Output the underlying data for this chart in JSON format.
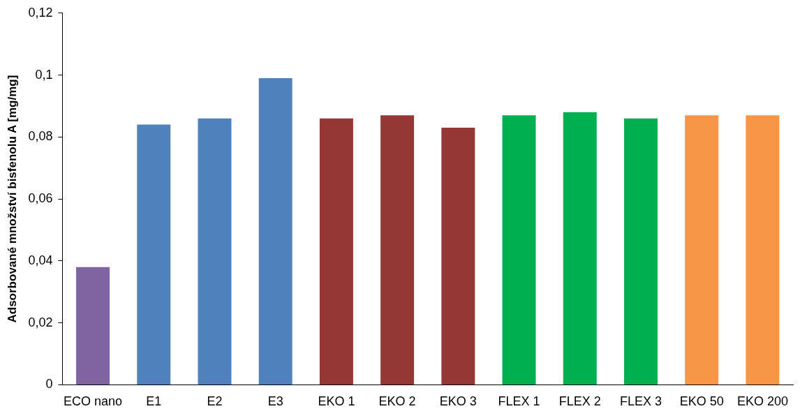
{
  "chart_data": {
    "type": "bar",
    "ylabel": "Adsorbované množství bisfenolu A [mg/mg]",
    "categories": [
      "ECO nano",
      "E1",
      "E2",
      "E3",
      "EKO 1",
      "EKO 2",
      "EKO 3",
      "FLEX 1",
      "FLEX 2",
      "FLEX 3",
      "EKO 50",
      "EKO 200"
    ],
    "values": [
      0.038,
      0.084,
      0.086,
      0.099,
      0.086,
      0.087,
      0.083,
      0.087,
      0.088,
      0.086,
      0.087,
      0.087
    ],
    "colors": [
      "#8064a2",
      "#4f81bd",
      "#4f81bd",
      "#4f81bd",
      "#953735",
      "#953735",
      "#953735",
      "#00b050",
      "#00b050",
      "#00b050",
      "#f79646",
      "#f79646"
    ],
    "ylim": [
      0,
      0.12
    ],
    "yticks": [
      {
        "value": 0,
        "label": "0"
      },
      {
        "value": 0.02,
        "label": "0,02"
      },
      {
        "value": 0.04,
        "label": "0,04"
      },
      {
        "value": 0.06,
        "label": "0,06"
      },
      {
        "value": 0.08,
        "label": "0,08"
      },
      {
        "value": 0.1,
        "label": "0,1"
      },
      {
        "value": 0.12,
        "label": "0,12"
      }
    ],
    "grid": false,
    "legend": false
  }
}
